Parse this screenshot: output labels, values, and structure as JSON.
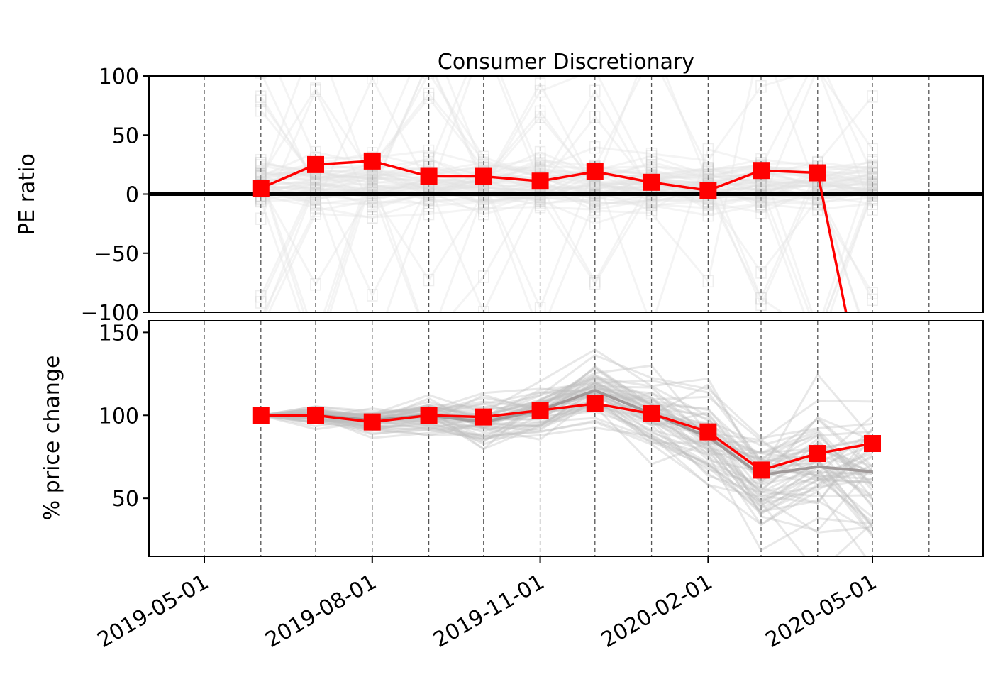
{
  "chart_data": [
    {
      "type": "line",
      "title": "Consumer Discretionary",
      "ylabel": "PE ratio",
      "xlabel": "",
      "ylim": [
        -100,
        100
      ],
      "yticks": [
        100,
        50,
        0,
        -50,
        -100
      ],
      "ytick_labels": [
        "100",
        "50",
        "0",
        "−50",
        "−100"
      ],
      "x": [
        "2019-06-01",
        "2019-07-01",
        "2019-08-01",
        "2019-09-01",
        "2019-10-01",
        "2019-11-01",
        "2019-12-01",
        "2020-01-01",
        "2020-02-01",
        "2020-03-01",
        "2020-04-01",
        "2020-05-01"
      ],
      "series": [
        {
          "values": [
            5,
            25,
            28,
            15,
            15,
            11,
            19,
            10,
            3,
            20,
            18,
            -210
          ],
          "color": "#ff0000"
        }
      ],
      "reference_line_y": 0,
      "vertical_gridlines": "monthly, dashed",
      "background_lines": "many faint grey lines with square markers"
    },
    {
      "type": "line",
      "ylabel": "% price change",
      "xlabel": "",
      "ylim": [
        15,
        157
      ],
      "yticks": [
        150,
        100,
        50
      ],
      "ytick_labels": [
        "150",
        "100",
        "50"
      ],
      "x": [
        "2019-06-01",
        "2019-07-01",
        "2019-08-01",
        "2019-09-01",
        "2019-10-01",
        "2019-11-01",
        "2019-12-01",
        "2020-01-01",
        "2020-02-01",
        "2020-03-01",
        "2020-04-01",
        "2020-05-01"
      ],
      "series": [
        {
          "values": [
            100,
            100,
            96,
            100,
            99,
            103,
            107,
            101,
            90,
            67,
            77,
            83
          ],
          "color": "#ff0000"
        },
        {
          "values": [
            100,
            100,
            97,
            100,
            96,
            103,
            115,
            101,
            87,
            64,
            69,
            66
          ],
          "color": "#a09a9a"
        }
      ],
      "vertical_gridlines": "monthly, dashed",
      "background_lines": "many faint grey lines"
    }
  ],
  "x_axis": {
    "tick_labels": [
      "2019-05-01",
      "2019-08-01",
      "2019-11-01",
      "2020-02-01",
      "2020-05-01"
    ],
    "tick_dates": [
      "2019-05-01",
      "2019-08-01",
      "2019-11-01",
      "2020-02-01",
      "2020-05-01"
    ],
    "range": [
      "2019-04-01",
      "2020-06-15"
    ],
    "label_rotation_deg": -30
  },
  "colors": {
    "accent": "#ff0000",
    "grey_line": "#a09a9a",
    "background_line": "#bdbdbd",
    "zero_line": "#000000",
    "grid": "#555555"
  }
}
